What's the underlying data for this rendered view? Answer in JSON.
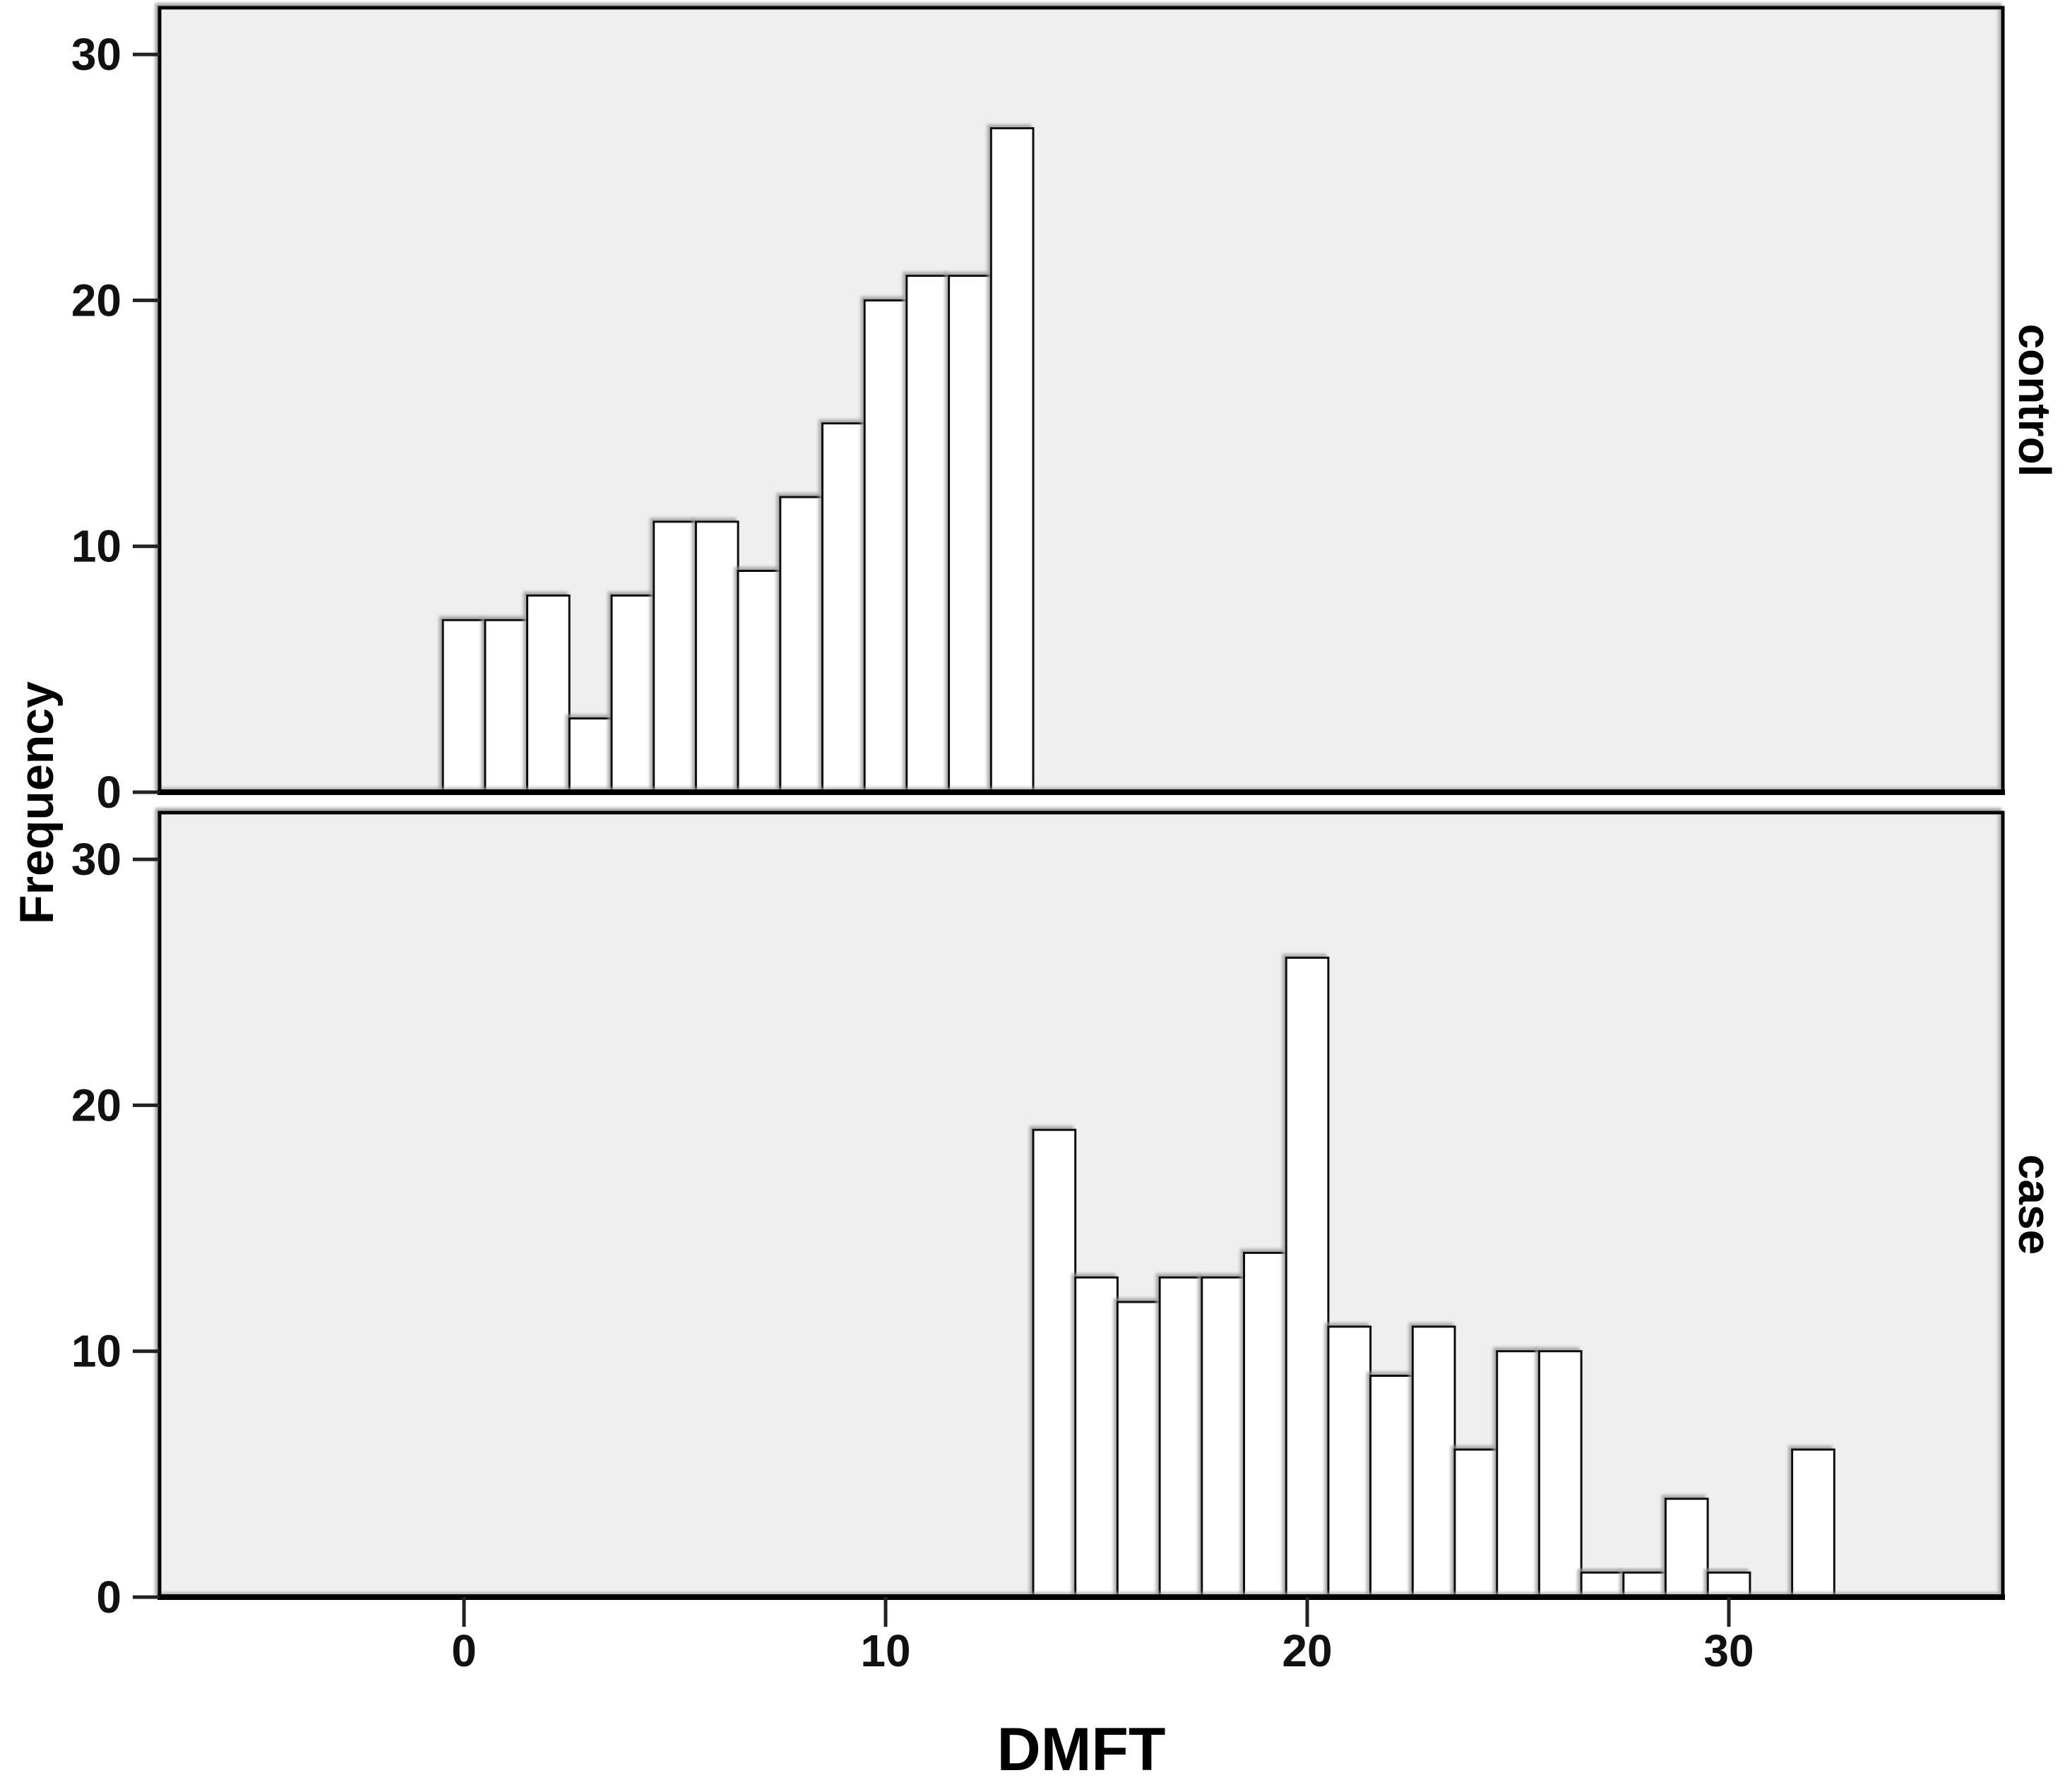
{
  "figure": {
    "xlabel": "DMFT",
    "ylabel": "Frequency",
    "x_tick_labels": [
      "0",
      "10",
      "20",
      "30"
    ],
    "y_tick_labels": [
      "0",
      "10",
      "20",
      "30"
    ]
  },
  "chart_data": [
    {
      "type": "bar",
      "name": "control",
      "title": "",
      "xlabel": "DMFT",
      "ylabel": "Frequency",
      "x": [
        0,
        1,
        2,
        3,
        4,
        5,
        6,
        7,
        8,
        9,
        10,
        11,
        12,
        13
      ],
      "values": [
        7,
        7,
        8,
        3,
        8,
        11,
        11,
        9,
        12,
        15,
        20,
        21,
        21,
        27
      ],
      "bin_width": 1,
      "n_total": 180,
      "x_ticks": [
        0,
        10,
        20,
        30
      ],
      "y_ticks": [
        0,
        10,
        20,
        30
      ],
      "xlim": [
        -7.2,
        36.5
      ],
      "ylim": [
        0,
        31.9
      ],
      "grid": false,
      "legend_position": "none",
      "panel_bg": "#efefef",
      "bar_fill": "#ffffff",
      "bar_stroke": "#0a0a0a"
    },
    {
      "type": "bar",
      "name": "case",
      "title": "",
      "xlabel": "DMFT",
      "ylabel": "Frequency",
      "x": [
        14,
        15,
        16,
        17,
        18,
        19,
        20,
        21,
        22,
        23,
        24,
        25,
        26,
        27,
        28,
        29,
        30,
        31,
        32
      ],
      "values": [
        19,
        13,
        12,
        13,
        13,
        14,
        26,
        11,
        9,
        11,
        6,
        10,
        10,
        1,
        1,
        4,
        1,
        0,
        6
      ],
      "bin_width": 1,
      "n_total": 180,
      "x_ticks": [
        0,
        10,
        20,
        30
      ],
      "y_ticks": [
        0,
        10,
        20,
        30
      ],
      "xlim": [
        -7.2,
        36.5
      ],
      "ylim": [
        0,
        31.9
      ],
      "grid": false,
      "legend_position": "none",
      "panel_bg": "#efefef",
      "bar_fill": "#ffffff",
      "bar_stroke": "#0a0a0a"
    }
  ]
}
